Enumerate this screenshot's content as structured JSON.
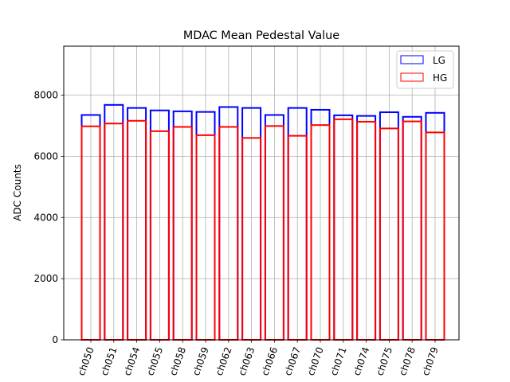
{
  "chart_data": {
    "type": "bar",
    "title": "MDAC Mean Pedestal Value",
    "xlabel": "",
    "ylabel": "ADC Counts",
    "ylim": [
      0,
      9600
    ],
    "yticks": [
      0,
      2000,
      4000,
      6000,
      8000
    ],
    "ytick_labels": [
      "0",
      "2000",
      "4000",
      "6000",
      "8000"
    ],
    "grid": true,
    "legend_position": "top-right",
    "categories": [
      "ch050",
      "ch051",
      "ch054",
      "ch055",
      "ch058",
      "ch059",
      "ch062",
      "ch063",
      "ch066",
      "ch067",
      "ch070",
      "ch071",
      "ch074",
      "ch075",
      "ch078",
      "ch079"
    ],
    "series": [
      {
        "name": "LG",
        "color": "#0000ff",
        "values": [
          7350,
          7680,
          7580,
          7500,
          7470,
          7450,
          7610,
          7580,
          7350,
          7580,
          7520,
          7340,
          7320,
          7440,
          7290,
          7420
        ]
      },
      {
        "name": "HG",
        "color": "#ff0000",
        "values": [
          6980,
          7070,
          7160,
          6820,
          6960,
          6690,
          6960,
          6600,
          6990,
          6670,
          7020,
          7210,
          7130,
          6910,
          7140,
          6780
        ]
      }
    ]
  }
}
